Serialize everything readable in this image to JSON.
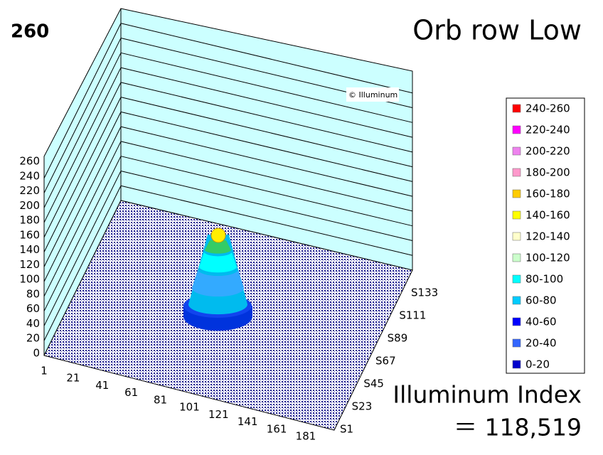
{
  "corner_label": "260",
  "title": "Orb row Low",
  "copyright": "© Illuminum",
  "z_ticks": [
    "0",
    "20",
    "40",
    "60",
    "80",
    "100",
    "120",
    "140",
    "160",
    "180",
    "200",
    "220",
    "240",
    "260"
  ],
  "x_ticks": [
    "1",
    "21",
    "41",
    "61",
    "81",
    "101",
    "121",
    "141",
    "161",
    "181"
  ],
  "y_ticks": [
    "S1",
    "S23",
    "S45",
    "S67",
    "S89",
    "S111",
    "S133"
  ],
  "legend": [
    {
      "label": "240-260",
      "color": "#ff0000"
    },
    {
      "label": "220-240",
      "color": "#ff00ff"
    },
    {
      "label": "200-220",
      "color": "#ee82ee"
    },
    {
      "label": "180-200",
      "color": "#ff99cc"
    },
    {
      "label": "160-180",
      "color": "#ffcc00"
    },
    {
      "label": "140-160",
      "color": "#ffff00"
    },
    {
      "label": "120-140",
      "color": "#ffffcc"
    },
    {
      "label": "100-120",
      "color": "#ccffcc"
    },
    {
      "label": "80-100",
      "color": "#00ffff"
    },
    {
      "label": "60-80",
      "color": "#00ccff"
    },
    {
      "label": "40-60",
      "color": "#0000ff"
    },
    {
      "label": "20-40",
      "color": "#3366ff"
    },
    {
      "label": "0-20",
      "color": "#0000cc"
    }
  ],
  "index_label": "Illuminum Index",
  "index_value": "＝ 118,519"
}
